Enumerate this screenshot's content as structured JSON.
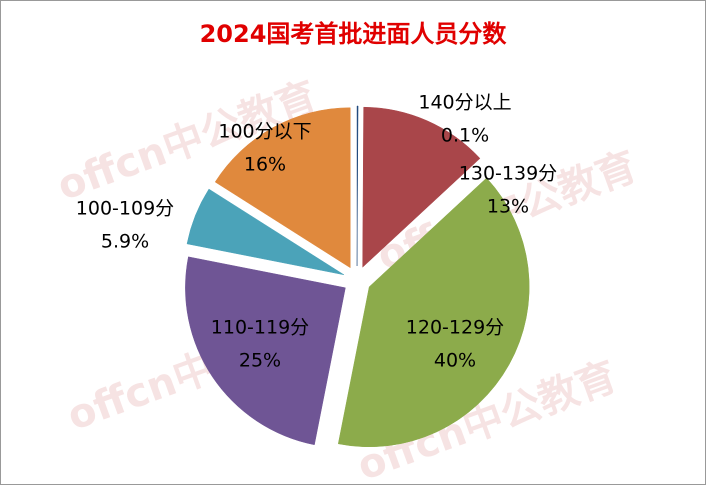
{
  "chart_data": {
    "type": "pie",
    "title": "2024国考首批进面人员分数",
    "watermark": "offcn中公教育",
    "categories": [
      "140分以上",
      "130-139分",
      "120-129分",
      "110-119分",
      "100-109分",
      "100分以下"
    ],
    "values": [
      0.1,
      13,
      40,
      25,
      5.9,
      16
    ],
    "value_labels": [
      "0.1%",
      "13%",
      "40%",
      "25%",
      "5.9%",
      "16%"
    ],
    "colors": [
      "#1f497d",
      "#a9464a",
      "#8cab4b",
      "#6f5595",
      "#4ba3b9",
      "#e0893d"
    ]
  }
}
